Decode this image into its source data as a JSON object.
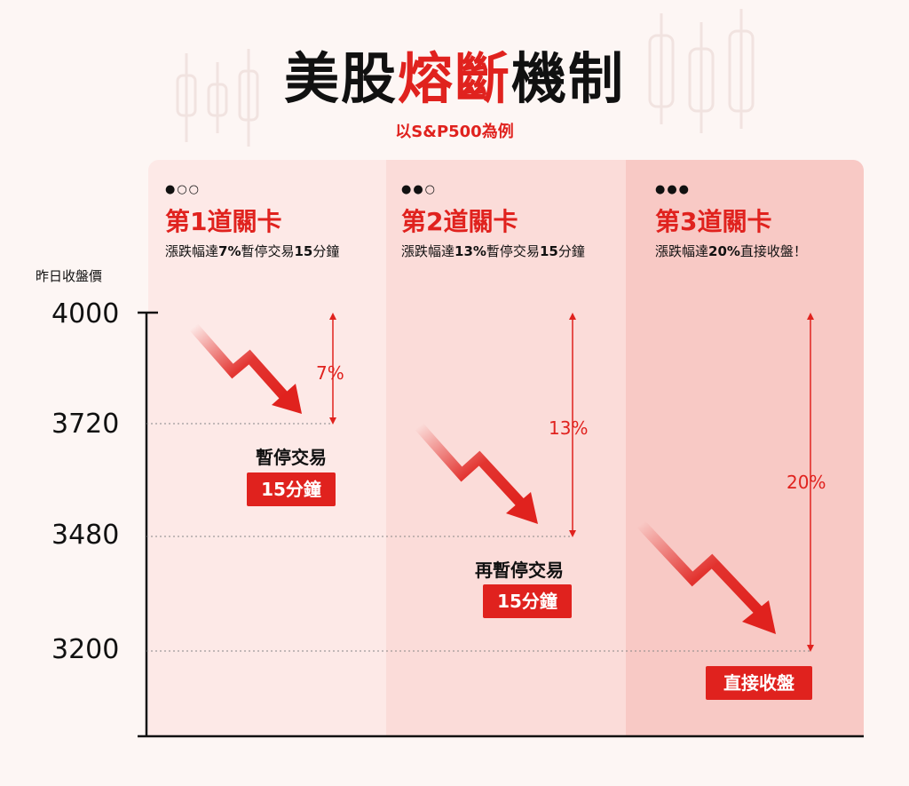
{
  "header": {
    "title_part1": "美股",
    "title_highlight": "熔斷",
    "title_part2": "機制",
    "subtitle": "以S&P500為例"
  },
  "axis": {
    "label": "昨日收盤價",
    "ticks": [
      "4000",
      "3720",
      "3480",
      "3200"
    ]
  },
  "stages": [
    {
      "dots": "●○○",
      "title": "第1道關卡",
      "desc_prefix": "漲跌幅達",
      "desc_bold": "7%",
      "desc_mid": "暫停交易",
      "desc_bold2": "15",
      "desc_suffix": "分鐘",
      "pct": "7%",
      "action": "暫停交易",
      "badge": "15分鐘"
    },
    {
      "dots": "●●○",
      "title": "第2道關卡",
      "desc_prefix": "漲跌幅達",
      "desc_bold": "13%",
      "desc_mid": "暫停交易",
      "desc_bold2": "15",
      "desc_suffix": "分鐘",
      "pct": "13%",
      "action": "再暫停交易",
      "badge": "15分鐘"
    },
    {
      "dots": "●●●",
      "title": "第3道關卡",
      "desc_prefix": "漲跌幅達",
      "desc_bold": "20%",
      "desc_mid": "直接收盤！",
      "desc_bold2": "",
      "desc_suffix": "",
      "pct": "20%",
      "badge": "直接收盤"
    }
  ],
  "colors": {
    "accent": "#e0221e",
    "panel1": "#fde9e7",
    "panel2": "#fbdcd9",
    "panel3": "#f8c9c5"
  }
}
